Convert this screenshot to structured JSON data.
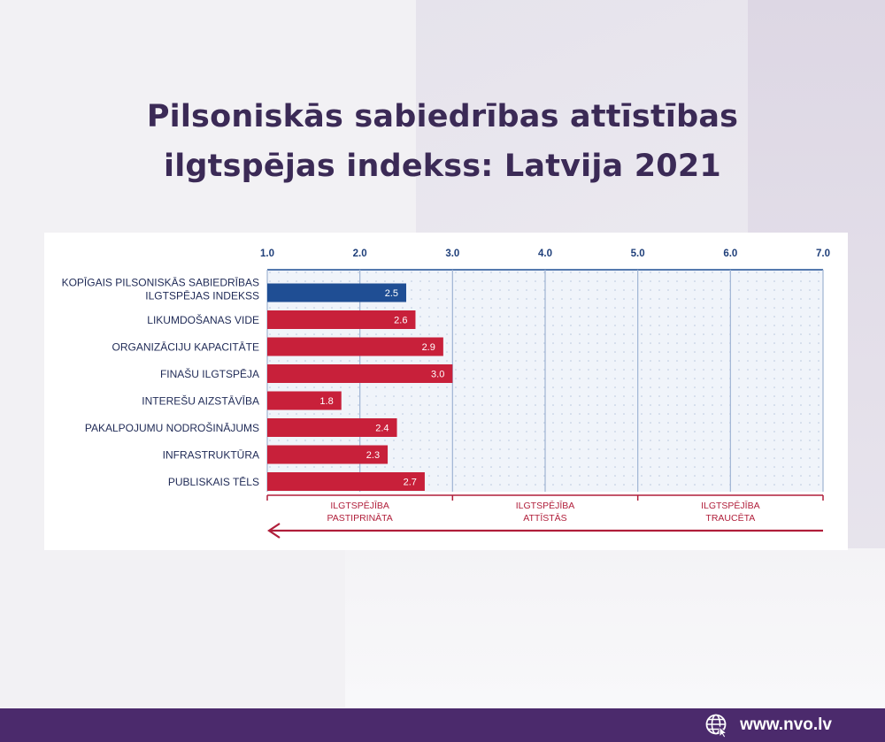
{
  "title_lines": [
    "Pilsoniskās sabiedrības attīstības",
    "ilgtspējas indekss: Latvija 2021"
  ],
  "footer": {
    "website": "www.nvo.lv"
  },
  "colors": {
    "title": "#3b2a56",
    "footer": "#4b2a6c",
    "overall_bar": "#1f4e94",
    "bar": "#c8203a",
    "axis": "#1f4e94",
    "arrow": "#b01e3a"
  },
  "chart_data": {
    "type": "bar",
    "orientation": "horizontal",
    "xlim": [
      1.0,
      7.0
    ],
    "ticks": [
      "1.0",
      "2.0",
      "3.0",
      "4.0",
      "5.0",
      "6.0",
      "7.0"
    ],
    "categories": [
      [
        "KOPĪGAIS PILSONISKĀS SABIEDRĪBAS",
        "ILGTSPĒJAS INDEKSS"
      ],
      [
        "LIKUMDOŠANAS VIDE"
      ],
      [
        "ORGANIZĀCIJU KAPACITĀTE"
      ],
      [
        "FINAŠU ILGTSPĒJA"
      ],
      [
        "INTEREŠU AIZSTĀVĪBA"
      ],
      [
        "PAKALPOJUMU NODROŠINĀJUMS"
      ],
      [
        "INFRASTRUKTŪRA"
      ],
      [
        "PUBLISKAIS TĒLS"
      ]
    ],
    "values": [
      2.5,
      2.6,
      2.9,
      3.0,
      1.8,
      2.4,
      2.3,
      2.7
    ],
    "value_labels": [
      "2.5",
      "2.6",
      "2.9",
      "3.0",
      "1.8",
      "2.4",
      "2.3",
      "2.7"
    ],
    "highlight_index": 0,
    "zones": [
      {
        "label": [
          "ILGTSPĒJĪBA",
          "PASTIPRINĀTA"
        ],
        "range": [
          1.0,
          3.0
        ]
      },
      {
        "label": [
          "ILGTSPĒJĪBA",
          "ATTĪSTĀS"
        ],
        "range": [
          3.0,
          5.0
        ]
      },
      {
        "label": [
          "ILGTSPĒJĪBA",
          "TRAUCĒTA"
        ],
        "range": [
          5.0,
          7.0
        ]
      }
    ]
  }
}
